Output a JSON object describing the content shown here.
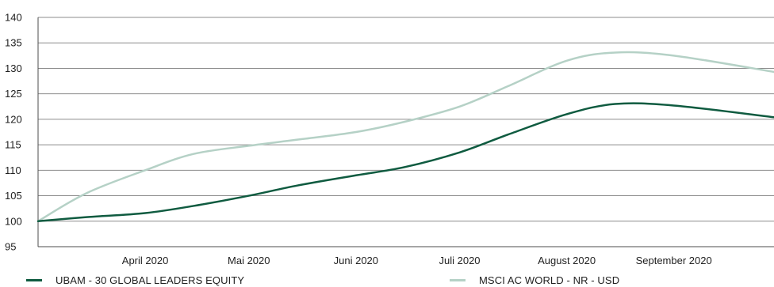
{
  "chart_data": {
    "type": "line",
    "title": "",
    "xlabel": "",
    "ylabel": "",
    "ylim": [
      95,
      140
    ],
    "yticks": [
      95,
      100,
      105,
      110,
      115,
      120,
      125,
      130,
      135,
      140
    ],
    "xlim": [
      "2020-03-01",
      "2020-09-30"
    ],
    "xticks": [
      {
        "label": "April 2020",
        "date": "2020-04-01"
      },
      {
        "label": "Mai 2020",
        "date": "2020-05-01"
      },
      {
        "label": "Juni 2020",
        "date": "2020-06-01"
      },
      {
        "label": "Juli 2020",
        "date": "2020-07-01"
      },
      {
        "label": "August 2020",
        "date": "2020-08-01"
      },
      {
        "label": "September 2020",
        "date": "2020-09-01"
      }
    ],
    "grid": true,
    "legend_position": "bottom",
    "series": [
      {
        "name": "UBAM - 30 GLOBAL LEADERS EQUITY",
        "color": "#0f5b40",
        "points": [
          {
            "x": "2020-03-01",
            "y": 100.0
          },
          {
            "x": "2020-03-15",
            "y": 100.8
          },
          {
            "x": "2020-04-01",
            "y": 101.6
          },
          {
            "x": "2020-04-15",
            "y": 103.0
          },
          {
            "x": "2020-05-01",
            "y": 105.0
          },
          {
            "x": "2020-05-15",
            "y": 107.0
          },
          {
            "x": "2020-06-01",
            "y": 109.0
          },
          {
            "x": "2020-06-15",
            "y": 110.6
          },
          {
            "x": "2020-07-01",
            "y": 113.5
          },
          {
            "x": "2020-07-15",
            "y": 117.0
          },
          {
            "x": "2020-08-01",
            "y": 121.0
          },
          {
            "x": "2020-08-15",
            "y": 123.0
          },
          {
            "x": "2020-09-01",
            "y": 122.7
          },
          {
            "x": "2020-09-30",
            "y": 120.4
          }
        ]
      },
      {
        "name": "MSCI AC WORLD - NR - USD",
        "color": "#b5d1c6",
        "points": [
          {
            "x": "2020-03-01",
            "y": 100.0
          },
          {
            "x": "2020-03-15",
            "y": 105.5
          },
          {
            "x": "2020-04-01",
            "y": 110.0
          },
          {
            "x": "2020-04-15",
            "y": 113.2
          },
          {
            "x": "2020-05-01",
            "y": 114.8
          },
          {
            "x": "2020-05-15",
            "y": 116.0
          },
          {
            "x": "2020-06-01",
            "y": 117.5
          },
          {
            "x": "2020-06-15",
            "y": 119.5
          },
          {
            "x": "2020-07-01",
            "y": 122.5
          },
          {
            "x": "2020-07-15",
            "y": 126.5
          },
          {
            "x": "2020-08-01",
            "y": 131.5
          },
          {
            "x": "2020-08-15",
            "y": 133.1
          },
          {
            "x": "2020-09-01",
            "y": 132.5
          },
          {
            "x": "2020-09-30",
            "y": 129.3
          }
        ]
      }
    ]
  }
}
